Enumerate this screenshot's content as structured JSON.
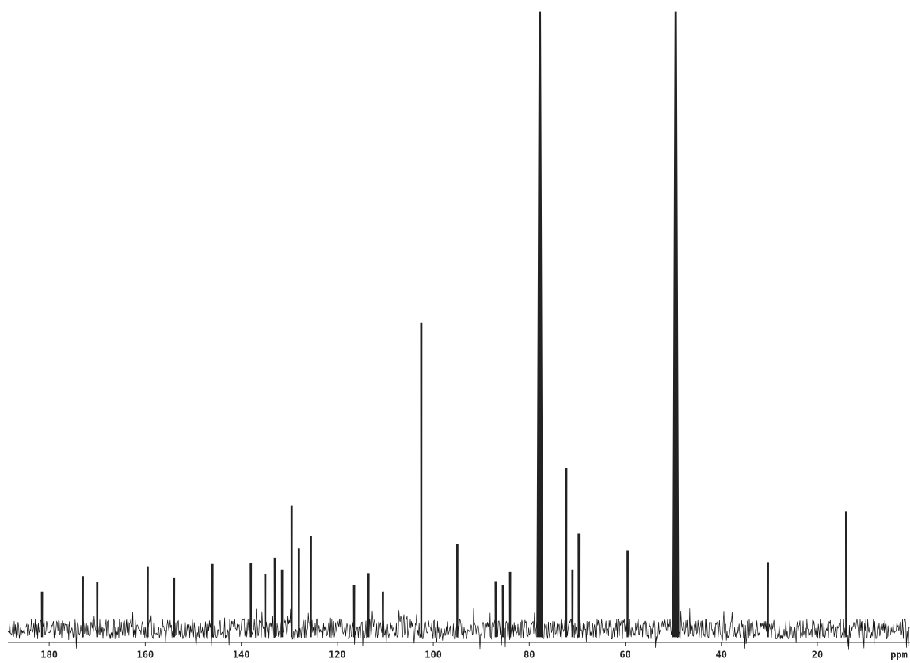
{
  "chart_data": {
    "type": "spectrum",
    "xlabel": "ppm",
    "xlim": [
      188.6,
      0.7
    ],
    "ylim": [
      0,
      100
    ],
    "xticks": [
      180,
      160,
      140,
      120,
      100,
      80,
      60,
      40,
      20
    ],
    "color": "#222222",
    "x": [
      181.5,
      173,
      170,
      159.5,
      154,
      146,
      138,
      135,
      133,
      131.5,
      129.5,
      128,
      125.5,
      116.5,
      113.5,
      110.5,
      102.5,
      95,
      87,
      85.5,
      84,
      77.8,
      72.3,
      71,
      69.7,
      59.5,
      49.5,
      30.3,
      14
    ],
    "values": [
      6,
      8.5,
      7.6,
      10,
      8.3,
      10.5,
      10.6,
      8.8,
      11.5,
      9.6,
      20,
      13,
      15,
      7,
      9,
      6,
      49.6,
      13.7,
      7.7,
      7,
      9.2,
      100,
      26,
      9.6,
      15.4,
      12.7,
      100,
      10.8,
      19
    ]
  }
}
